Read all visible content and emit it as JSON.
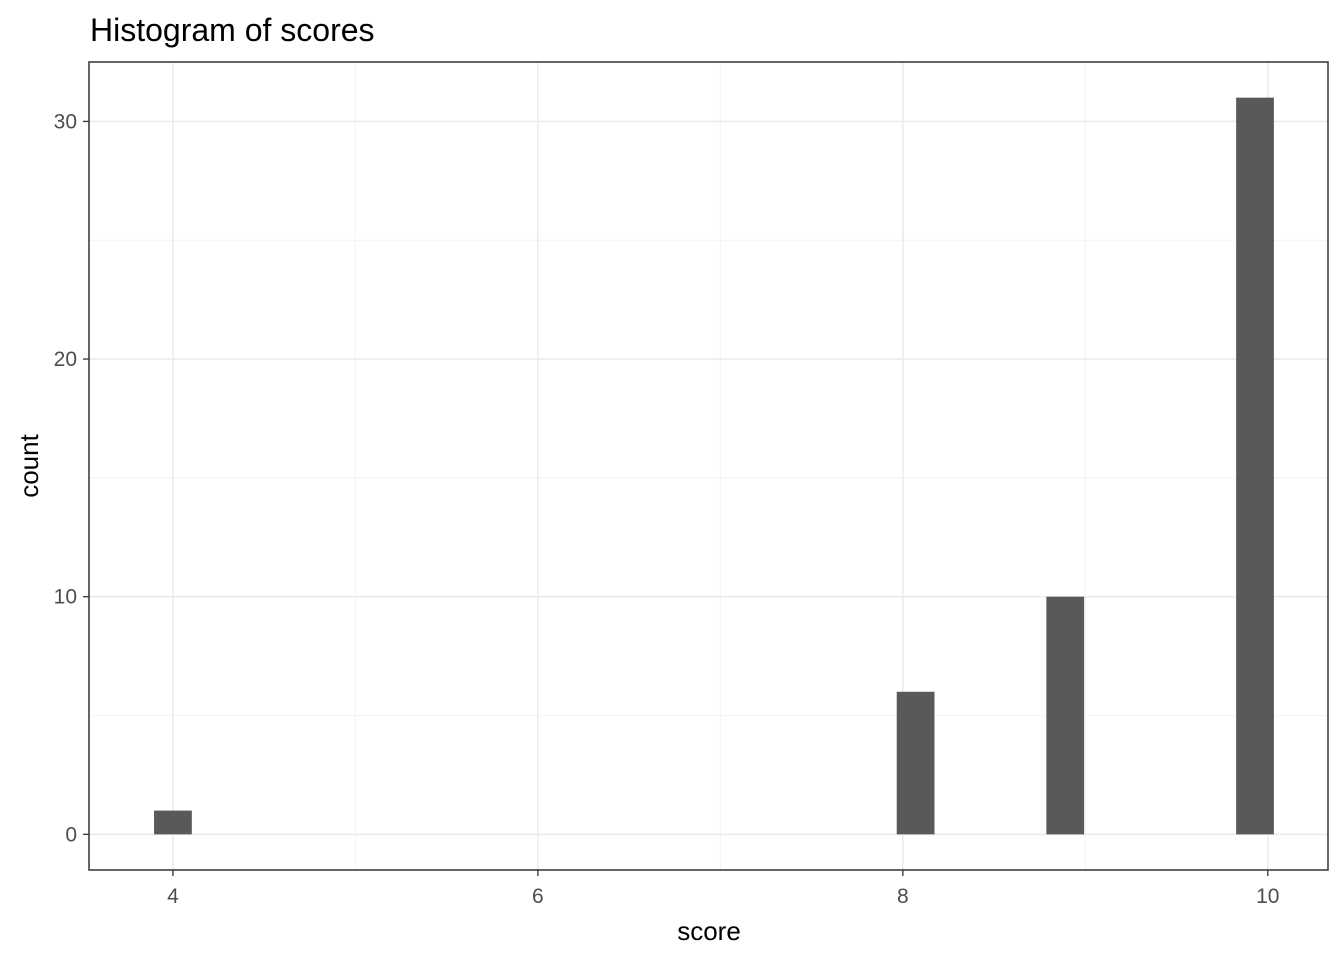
{
  "chart_data": {
    "type": "bar",
    "title": "Histogram of scores",
    "xlabel": "score",
    "ylabel": "count",
    "bin_width": 0.207,
    "bins": [
      {
        "x": 4,
        "count": 1
      },
      {
        "x": 8.07,
        "count": 6
      },
      {
        "x": 8.89,
        "count": 10
      },
      {
        "x": 9.93,
        "count": 31
      }
    ],
    "xlim": [
      3.54,
      10.33
    ],
    "ylim": [
      -1.5,
      32.5
    ],
    "x_major_ticks": [
      4,
      6,
      8,
      10
    ],
    "x_minor_ticks": [
      5,
      7,
      9
    ],
    "y_major_ticks": [
      0,
      10,
      20,
      30
    ],
    "y_minor_ticks": [
      5,
      15,
      25
    ],
    "grid": true,
    "theme": "bw",
    "bar_color": "#595959"
  }
}
